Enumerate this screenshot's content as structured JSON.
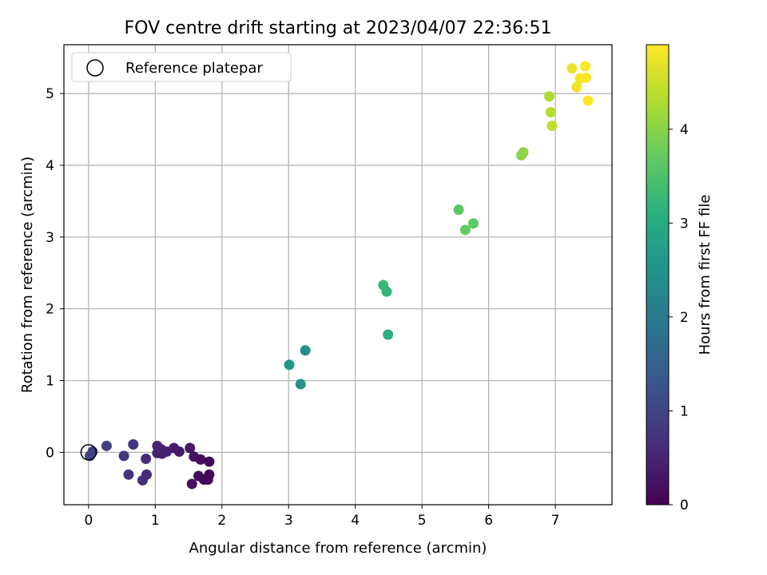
{
  "chart_data": {
    "type": "scatter",
    "title": "FOV centre drift starting at 2023/04/07 22:36:51",
    "xlabel": "Angular distance from reference (arcmin)",
    "ylabel": "Rotation from reference (arcmin)",
    "xlim": [
      -0.37,
      7.85
    ],
    "ylim": [
      -0.73,
      5.68
    ],
    "xticks": [
      0,
      1,
      2,
      3,
      4,
      5,
      6,
      7
    ],
    "yticks": [
      0,
      1,
      2,
      3,
      4,
      5
    ],
    "grid": true,
    "legend": {
      "position": "top-left",
      "entries": [
        {
          "label": "Reference platepar",
          "marker": "open-circle"
        }
      ]
    },
    "reference_point": {
      "x": 0,
      "y": 0
    },
    "colorbar": {
      "label": "Hours from first FF file",
      "colormap": "viridis",
      "range": [
        0,
        4.9
      ],
      "ticks": [
        0,
        1,
        2,
        3,
        4
      ]
    },
    "points": [
      {
        "x": 0.02,
        "y": -0.05,
        "t": 1.0
      },
      {
        "x": 0.06,
        "y": 0.01,
        "t": 0.95
      },
      {
        "x": 0.27,
        "y": 0.09,
        "t": 0.9
      },
      {
        "x": 0.53,
        "y": -0.05,
        "t": 0.8
      },
      {
        "x": 0.67,
        "y": 0.11,
        "t": 0.75
      },
      {
        "x": 0.6,
        "y": -0.31,
        "t": 0.72
      },
      {
        "x": 0.81,
        "y": -0.39,
        "t": 0.65
      },
      {
        "x": 0.87,
        "y": -0.31,
        "t": 0.6
      },
      {
        "x": 0.86,
        "y": -0.09,
        "t": 0.62
      },
      {
        "x": 1.03,
        "y": 0.09,
        "t": 0.5
      },
      {
        "x": 1.03,
        "y": -0.01,
        "t": 0.48
      },
      {
        "x": 1.09,
        "y": 0.04,
        "t": 0.46
      },
      {
        "x": 1.1,
        "y": -0.02,
        "t": 0.44
      },
      {
        "x": 1.17,
        "y": 0.01,
        "t": 0.42
      },
      {
        "x": 1.28,
        "y": 0.06,
        "t": 0.38
      },
      {
        "x": 1.36,
        "y": 0.01,
        "t": 0.35
      },
      {
        "x": 1.52,
        "y": 0.06,
        "t": 0.3
      },
      {
        "x": 1.58,
        "y": -0.06,
        "t": 0.26
      },
      {
        "x": 1.55,
        "y": -0.44,
        "t": 0.2
      },
      {
        "x": 1.65,
        "y": -0.33,
        "t": 0.18
      },
      {
        "x": 1.68,
        "y": -0.1,
        "t": 0.15
      },
      {
        "x": 1.73,
        "y": -0.38,
        "t": 0.1
      },
      {
        "x": 1.79,
        "y": -0.38,
        "t": 0.08
      },
      {
        "x": 1.81,
        "y": -0.31,
        "t": 0.06
      },
      {
        "x": 1.81,
        "y": -0.13,
        "t": 0.04
      },
      {
        "x": 3.01,
        "y": 1.22,
        "t": 2.6
      },
      {
        "x": 3.18,
        "y": 0.95,
        "t": 2.5
      },
      {
        "x": 3.25,
        "y": 1.42,
        "t": 2.4
      },
      {
        "x": 4.42,
        "y": 2.33,
        "t": 3.25
      },
      {
        "x": 4.47,
        "y": 2.24,
        "t": 3.2
      },
      {
        "x": 4.49,
        "y": 1.64,
        "t": 3.1
      },
      {
        "x": 5.55,
        "y": 3.38,
        "t": 3.6
      },
      {
        "x": 5.65,
        "y": 3.1,
        "t": 3.7
      },
      {
        "x": 5.77,
        "y": 3.19,
        "t": 3.65
      },
      {
        "x": 6.49,
        "y": 4.14,
        "t": 4.0
      },
      {
        "x": 6.52,
        "y": 4.18,
        "t": 4.05
      },
      {
        "x": 6.91,
        "y": 4.96,
        "t": 4.3
      },
      {
        "x": 6.93,
        "y": 4.74,
        "t": 4.35
      },
      {
        "x": 6.95,
        "y": 4.55,
        "t": 4.4
      },
      {
        "x": 7.25,
        "y": 5.35,
        "t": 4.75
      },
      {
        "x": 7.32,
        "y": 5.09,
        "t": 4.8
      },
      {
        "x": 7.37,
        "y": 5.21,
        "t": 4.85
      },
      {
        "x": 7.45,
        "y": 5.38,
        "t": 4.88
      },
      {
        "x": 7.46,
        "y": 5.22,
        "t": 4.9
      },
      {
        "x": 7.49,
        "y": 4.9,
        "t": 4.9
      }
    ]
  }
}
